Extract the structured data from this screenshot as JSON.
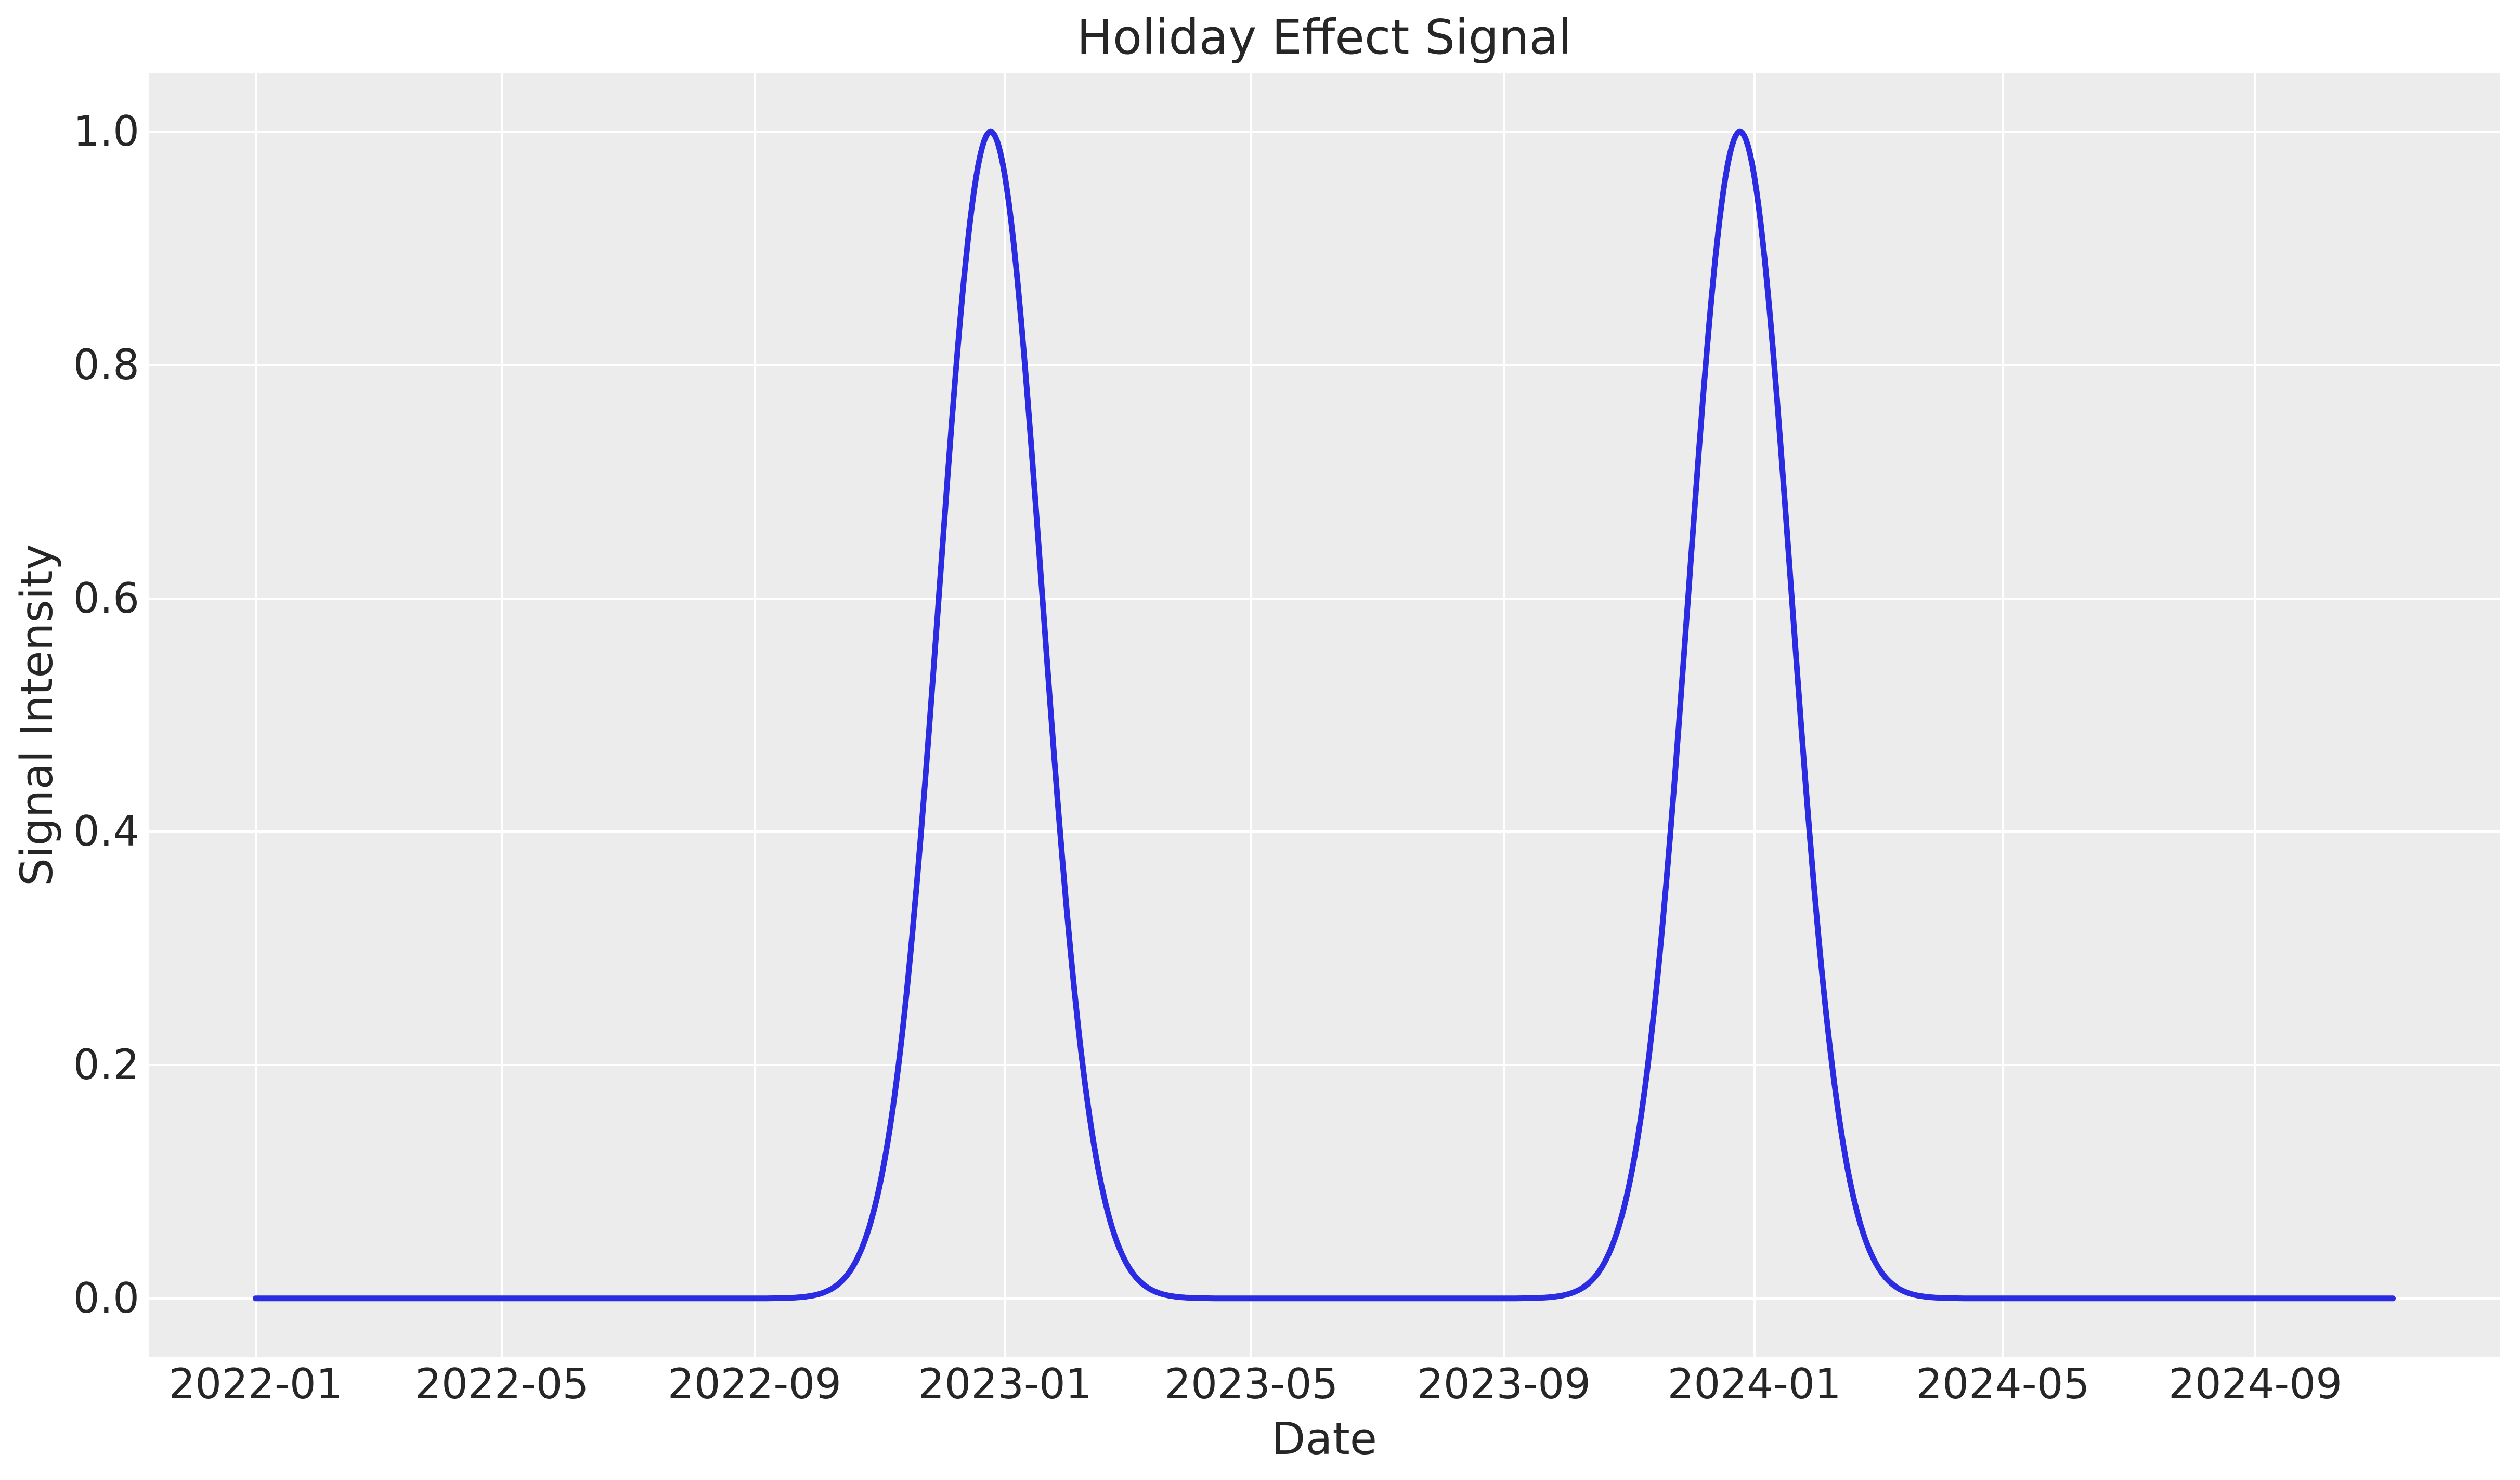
{
  "figure": {
    "background_color": "#ffffff",
    "plot_background_color": "#ececec",
    "grid_color": "#ffffff",
    "text_color": "#262626"
  },
  "chart_data": {
    "type": "line",
    "title": "Holiday Effect Signal",
    "xlabel": "Date",
    "ylabel": "Signal Intensity",
    "grid": true,
    "legend": "none",
    "x_start": "2022-01-01",
    "x_end": "2024-11-07",
    "x_margin_frac": 0.05,
    "ylim": [
      -0.05,
      1.05
    ],
    "x_tick_labels": [
      "2022-01",
      "2022-05",
      "2022-09",
      "2023-01",
      "2023-05",
      "2023-09",
      "2024-01",
      "2024-05",
      "2024-09"
    ],
    "y_ticks": [
      0.0,
      0.2,
      0.4,
      0.6,
      0.8,
      1.0
    ],
    "y_tick_labels": [
      "0.0",
      "0.2",
      "0.4",
      "0.6",
      "0.8",
      "1.0"
    ],
    "series": [
      {
        "name": "holiday effect signal",
        "color": "#2b2be2",
        "line_width": 11,
        "model": "sum_of_gaussians",
        "baseline": 0.0,
        "amplitude": 1.0,
        "sigma_days": 25,
        "peak_dates": [
          "2022-12-25",
          "2023-12-25"
        ],
        "key_points": [
          {
            "date": "2022-01-01",
            "value": 0.0
          },
          {
            "date": "2022-12-25",
            "value": 1.0
          },
          {
            "date": "2023-06-15",
            "value": 0.0
          },
          {
            "date": "2023-12-25",
            "value": 1.0
          },
          {
            "date": "2024-11-07",
            "value": 0.0
          }
        ]
      }
    ]
  }
}
